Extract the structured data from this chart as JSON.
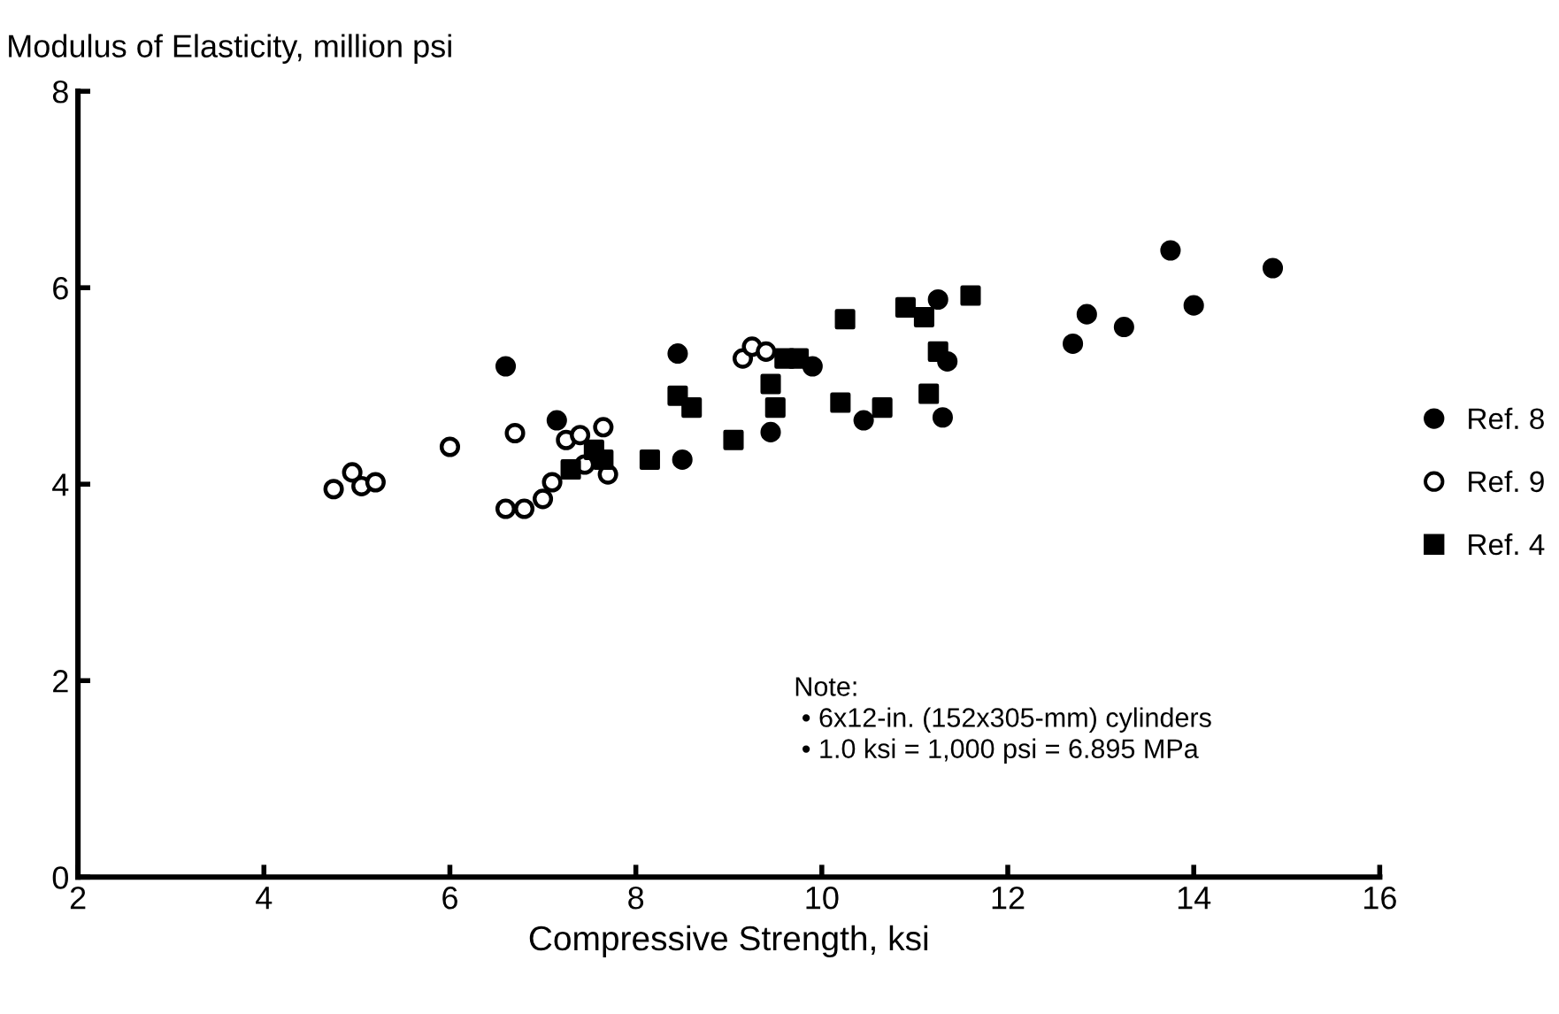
{
  "chart_data": {
    "type": "scatter",
    "xlabel": "Compressive Strength, ksi",
    "ylabel": "Modulus of Elasticity, million psi",
    "xlim": [
      2,
      16
    ],
    "xticks": [
      2,
      4,
      6,
      8,
      10,
      12,
      14,
      16
    ],
    "ylim": [
      0,
      8
    ],
    "yticks": [
      0,
      2,
      4,
      6,
      8
    ],
    "grid": false,
    "legend": "right",
    "annotations": [
      "Note:\n • 6x12-in. (152x305-mm) cylinders\n • 1.0 ksi = 1,000 psi = 6.895 MPa"
    ],
    "series": [
      {
        "name": "Ref. 8",
        "color": "#000000",
        "marker": "circle",
        "x": [
          6.6,
          7.15,
          8.45,
          8.5,
          9.45,
          9.9,
          10.45,
          11.25,
          11.35,
          11.3,
          12.7,
          12.85,
          13.25,
          13.75,
          14.0,
          14.85
        ],
        "values": [
          5.2,
          4.65,
          5.33,
          4.25,
          4.53,
          5.2,
          4.65,
          5.88,
          5.25,
          4.68,
          5.43,
          5.73,
          5.6,
          6.38,
          5.82,
          6.2
        ]
      },
      {
        "name": "Ref. 9",
        "color": "#000000",
        "marker": "open circle",
        "x": [
          4.75,
          4.95,
          5.05,
          5.2,
          6.0,
          6.6,
          6.7,
          6.8,
          7.0,
          7.1,
          7.25,
          7.4,
          7.45,
          7.65,
          7.7,
          9.15,
          9.25,
          9.4
        ],
        "values": [
          3.95,
          4.12,
          3.98,
          4.02,
          4.38,
          3.75,
          4.52,
          3.75,
          3.85,
          4.02,
          4.45,
          4.5,
          4.2,
          4.58,
          4.1,
          5.28,
          5.4,
          5.35
        ]
      },
      {
        "name": "Ref. 4",
        "color": "#000000",
        "marker": "square",
        "x": [
          7.3,
          7.55,
          7.65,
          8.15,
          8.45,
          8.6,
          9.05,
          9.45,
          9.5,
          9.6,
          9.75,
          10.2,
          10.25,
          10.65,
          10.9,
          11.1,
          11.15,
          11.25,
          11.6
        ],
        "values": [
          4.15,
          4.35,
          4.25,
          4.25,
          4.9,
          4.78,
          4.45,
          5.02,
          4.78,
          5.28,
          5.28,
          4.83,
          5.68,
          4.78,
          5.8,
          5.7,
          4.92,
          5.35,
          5.92
        ]
      }
    ]
  }
}
